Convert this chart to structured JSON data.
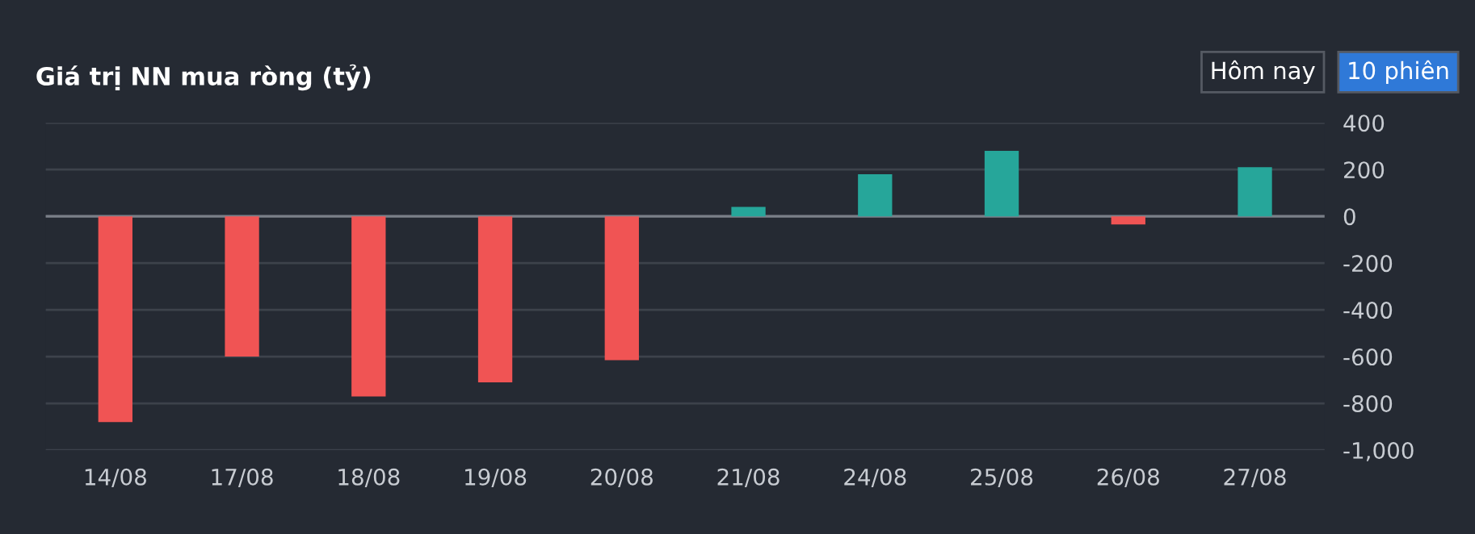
{
  "chart_data": {
    "type": "bar",
    "title": "Giá trị NN mua ròng (tỷ)",
    "categories": [
      "14/08",
      "17/08",
      "18/08",
      "19/08",
      "20/08",
      "21/08",
      "24/08",
      "25/08",
      "26/08",
      "27/08"
    ],
    "values": [
      -880,
      -600,
      -770,
      -710,
      -615,
      40,
      180,
      280,
      -35,
      210
    ],
    "colors": [
      "#f05454",
      "#f05454",
      "#f05454",
      "#f05454",
      "#f05454",
      "#26a69a",
      "#26a69a",
      "#26a69a",
      "#f05454",
      "#26a69a"
    ],
    "ylim": [
      -1000,
      400
    ],
    "yticks": [
      {
        "value": -1000,
        "label": "-1,000"
      },
      -800,
      -600,
      -400,
      -200,
      0,
      200,
      400
    ],
    "grid": "y",
    "annotations": [
      "Hôm nay",
      "10 phiên"
    ]
  }
}
